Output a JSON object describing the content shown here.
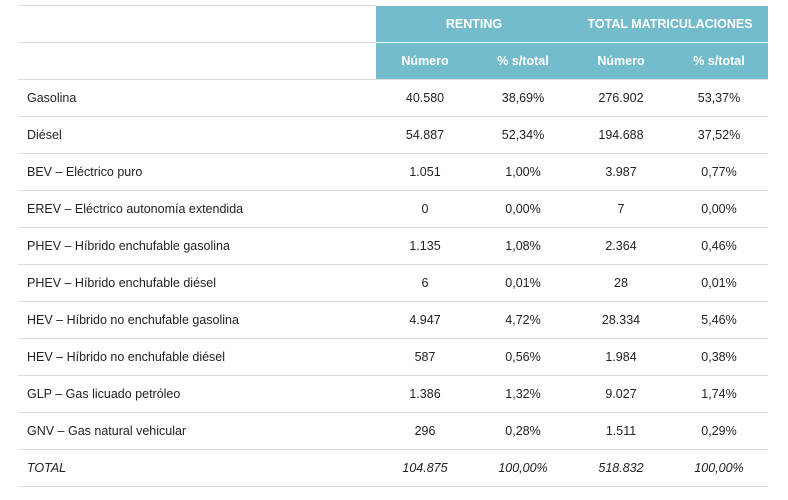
{
  "table": {
    "group_headers": [
      "RENTING",
      "TOTAL MATRICULACIONES"
    ],
    "sub_headers": [
      "Número",
      "% s/total",
      "Número",
      "% s/total"
    ],
    "rows": [
      [
        "Gasolina",
        "40.580",
        "38,69%",
        "276.902",
        "53,37%"
      ],
      [
        "Diésel",
        "54.887",
        "52,34%",
        "194.688",
        "37,52%"
      ],
      [
        "BEV – Eléctrico puro",
        "1.051",
        "1,00%",
        "3.987",
        "0,77%"
      ],
      [
        "EREV – Eléctrico autonomía extendida",
        "0",
        "0,00%",
        "7",
        "0,00%"
      ],
      [
        "PHEV – Híbrido enchufable gasolina",
        "1.135",
        "1,08%",
        "2.364",
        "0,46%"
      ],
      [
        "PHEV – Híbrido enchufable diésel",
        "6",
        "0,01%",
        "28",
        "0,01%"
      ],
      [
        "HEV – Híbrido no enchufable gasolina",
        "4.947",
        "4,72%",
        "28.334",
        "5,46%"
      ],
      [
        "HEV – Híbrido no enchufable diésel",
        "587",
        "0,56%",
        "1.984",
        "0,38%"
      ],
      [
        "GLP – Gas licuado petróleo",
        "1.386",
        "1,32%",
        "9.027",
        "1,74%"
      ],
      [
        "GNV – Gas natural vehicular",
        "296",
        "0,28%",
        "1.511",
        "0,29%"
      ]
    ],
    "total": [
      "TOTAL",
      "104.875",
      "100,00%",
      "518.832",
      "100,00%"
    ]
  }
}
